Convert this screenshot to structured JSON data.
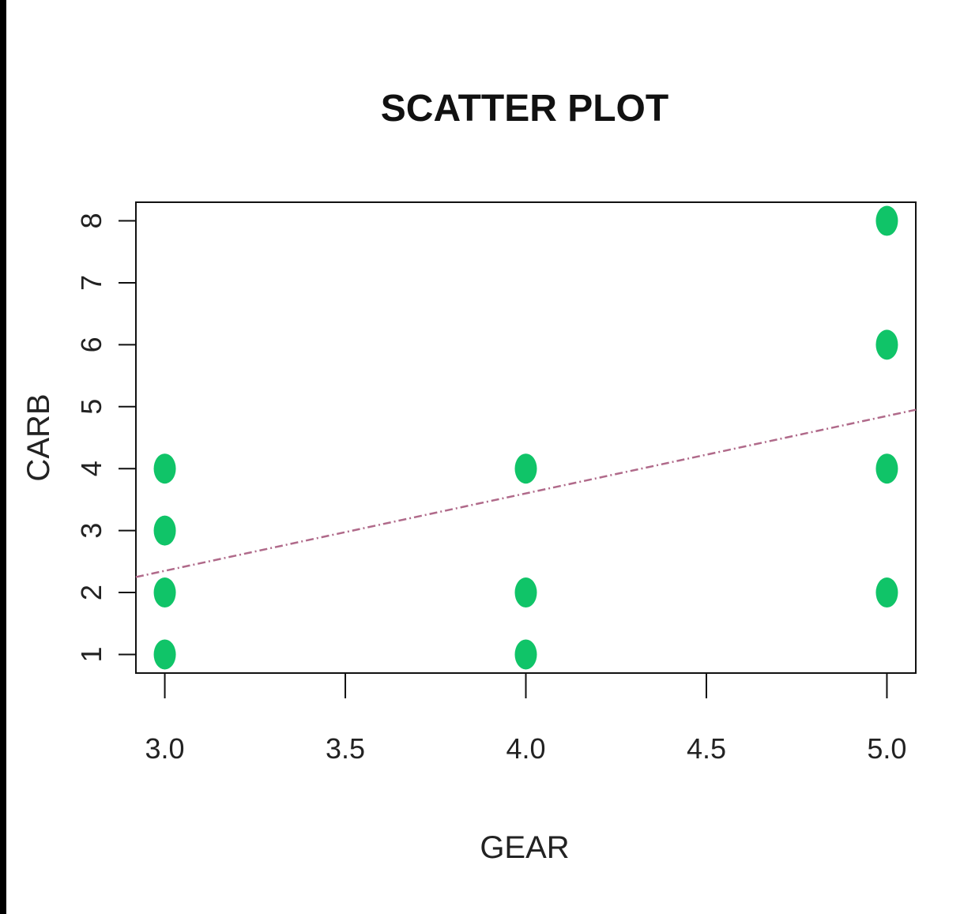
{
  "chart_data": {
    "type": "scatter",
    "title": "SCATTER PLOT",
    "xlabel": "GEAR",
    "ylabel": "CARB",
    "xlim": [
      2.92,
      5.08
    ],
    "ylim": [
      0.7,
      8.3
    ],
    "x_ticks": [
      3.0,
      3.5,
      4.0,
      4.5,
      5.0
    ],
    "x_tick_labels": [
      "3.0",
      "3.5",
      "4.0",
      "4.5",
      "5.0"
    ],
    "y_ticks": [
      1,
      2,
      3,
      4,
      5,
      6,
      7,
      8
    ],
    "y_tick_labels": [
      "1",
      "2",
      "3",
      "4",
      "5",
      "6",
      "7",
      "8"
    ],
    "grid": false,
    "points": [
      {
        "x": 3,
        "y": 1
      },
      {
        "x": 3,
        "y": 2
      },
      {
        "x": 3,
        "y": 3
      },
      {
        "x": 3,
        "y": 4
      },
      {
        "x": 4,
        "y": 1
      },
      {
        "x": 4,
        "y": 2
      },
      {
        "x": 4,
        "y": 4
      },
      {
        "x": 5,
        "y": 2
      },
      {
        "x": 5,
        "y": 4
      },
      {
        "x": 5,
        "y": 6
      },
      {
        "x": 5,
        "y": 8
      }
    ],
    "trend_line": {
      "intercept": -1.4,
      "slope": 1.25
    },
    "colors": {
      "points": "#10c468",
      "trend_line": "#b06a8a",
      "axes": "#111111",
      "background": "#ffffff",
      "frame": "#000000"
    }
  }
}
